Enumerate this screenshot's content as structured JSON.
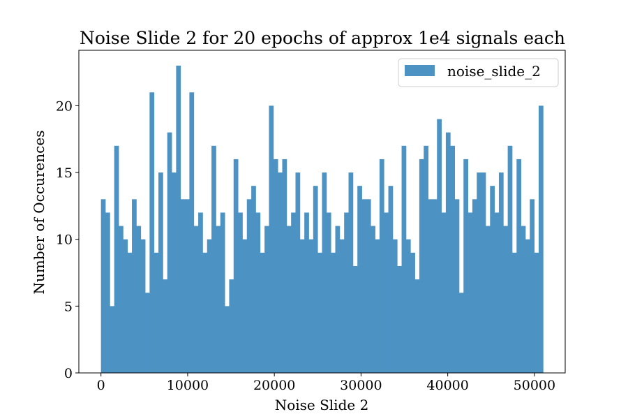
{
  "chart_data": {
    "type": "bar",
    "title": "Noise Slide 2 for 20 epochs of approx 1e4 signals each",
    "xlabel": "Noise Slide 2",
    "ylabel": "Number of Occurences",
    "xlim": [
      -2550,
      53550
    ],
    "ylim": [
      0,
      24.15
    ],
    "xticks": [
      0,
      10000,
      20000,
      30000,
      40000,
      50000
    ],
    "yticks": [
      0,
      5,
      10,
      15,
      20
    ],
    "grid": false,
    "legend": {
      "position": "top-right"
    },
    "bin_start": 0,
    "bin_width": 510,
    "series": [
      {
        "name": "noise_slide_2",
        "color": "#4c92c3",
        "values": [
          13,
          12,
          5,
          17,
          11,
          10,
          9,
          13,
          11,
          10,
          6,
          21,
          9,
          15,
          7,
          18,
          15,
          23,
          13,
          13,
          21,
          11,
          12,
          9,
          10,
          17,
          11,
          12,
          5,
          7,
          16,
          12,
          10,
          13,
          14,
          12,
          9,
          11,
          20,
          16,
          15,
          16,
          11,
          12,
          15,
          10,
          12,
          10,
          14,
          9,
          15,
          12,
          9,
          11,
          10,
          12,
          15,
          8,
          14,
          13,
          13,
          11,
          10,
          16,
          12,
          14,
          10,
          8,
          17,
          10,
          9,
          7,
          16,
          17,
          13,
          13,
          19,
          12,
          18,
          17,
          13,
          6,
          16,
          12,
          13,
          15,
          15,
          11,
          14,
          12,
          15,
          11,
          17,
          9,
          16,
          11,
          10,
          13,
          9,
          20
        ]
      }
    ]
  }
}
